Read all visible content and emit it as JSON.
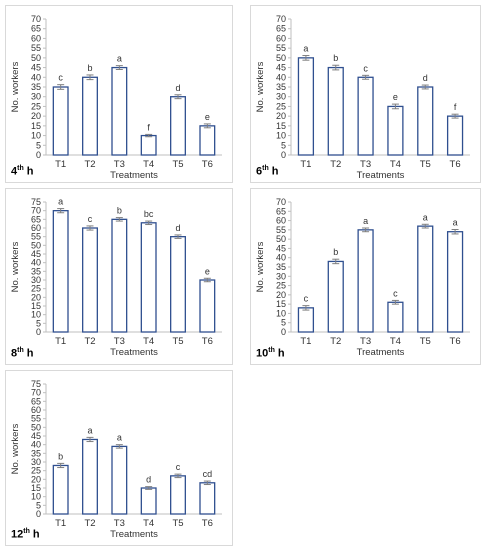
{
  "chart_data": [
    {
      "type": "bar",
      "panel_label": {
        "pre": "4",
        "sup": "th",
        "post": " h"
      },
      "xlabel": "Treatments",
      "ylabel": "No. workers",
      "ylim": [
        0,
        70
      ],
      "yticks": [
        0,
        5,
        10,
        15,
        20,
        25,
        30,
        35,
        40,
        45,
        50,
        55,
        60,
        65,
        70
      ],
      "categories": [
        "T1",
        "T2",
        "T3",
        "T4",
        "T5",
        "T6"
      ],
      "values": [
        35,
        40,
        45,
        10,
        30,
        15
      ],
      "errors": [
        1.2,
        1.2,
        1.0,
        0.6,
        1.0,
        1.0
      ],
      "letters": [
        "c",
        "b",
        "a",
        "f",
        "d",
        "e"
      ]
    },
    {
      "type": "bar",
      "panel_label": {
        "pre": "6",
        "sup": "th",
        "post": " h"
      },
      "xlabel": "Treatments",
      "ylabel": "No. workers",
      "ylim": [
        0,
        70
      ],
      "yticks": [
        0,
        5,
        10,
        15,
        20,
        25,
        30,
        35,
        40,
        45,
        50,
        55,
        60,
        65,
        70
      ],
      "categories": [
        "T1",
        "T2",
        "T3",
        "T4",
        "T5",
        "T6"
      ],
      "values": [
        50,
        45,
        40,
        25,
        35,
        20
      ],
      "errors": [
        1.2,
        1.2,
        1.0,
        1.2,
        1.0,
        1.0
      ],
      "letters": [
        "a",
        "b",
        "c",
        "e",
        "d",
        "f"
      ]
    },
    {
      "type": "bar",
      "panel_label": {
        "pre": "8",
        "sup": "th",
        "post": " h"
      },
      "xlabel": "Treatments",
      "ylabel": "No. workers",
      "ylim": [
        0,
        75
      ],
      "yticks": [
        0,
        5,
        10,
        15,
        20,
        25,
        30,
        35,
        40,
        45,
        50,
        55,
        60,
        65,
        70,
        75
      ],
      "categories": [
        "T1",
        "T2",
        "T3",
        "T4",
        "T5",
        "T6"
      ],
      "values": [
        70,
        60,
        65,
        63,
        55,
        30
      ],
      "errors": [
        1.2,
        1.2,
        1.0,
        1.0,
        1.0,
        1.0
      ],
      "letters": [
        "a",
        "c",
        "b",
        "bc",
        "d",
        "e"
      ]
    },
    {
      "type": "bar",
      "panel_label": {
        "pre": "10",
        "sup": "th",
        "post": " h"
      },
      "xlabel": "Treatments",
      "ylabel": "No. workers",
      "ylim": [
        0,
        70
      ],
      "yticks": [
        0,
        5,
        10,
        15,
        20,
        25,
        30,
        35,
        40,
        45,
        50,
        55,
        60,
        65,
        70
      ],
      "categories": [
        "T1",
        "T2",
        "T3",
        "T4",
        "T5",
        "T6"
      ],
      "values": [
        13,
        38,
        55,
        16,
        57,
        54
      ],
      "errors": [
        1.2,
        1.2,
        1.0,
        1.0,
        1.0,
        1.2
      ],
      "letters": [
        "c",
        "b",
        "a",
        "c",
        "a",
        "a"
      ]
    },
    {
      "type": "bar",
      "panel_label": {
        "pre": "12",
        "sup": "th",
        "post": " h"
      },
      "xlabel": "Treatments",
      "ylabel": "No. workers",
      "ylim": [
        0,
        75
      ],
      "yticks": [
        0,
        5,
        10,
        15,
        20,
        25,
        30,
        35,
        40,
        45,
        50,
        55,
        60,
        65,
        70,
        75
      ],
      "categories": [
        "T1",
        "T2",
        "T3",
        "T4",
        "T5",
        "T6"
      ],
      "values": [
        28,
        43,
        39,
        15,
        22,
        18
      ],
      "errors": [
        1.2,
        1.2,
        1.0,
        0.8,
        1.0,
        1.0
      ],
      "letters": [
        "b",
        "a",
        "a",
        "d",
        "c",
        "cd"
      ]
    }
  ],
  "colors": {
    "bar_edge": "#2f4f8f",
    "bar_fill": "#ffffff",
    "axis": "#bfbfbf",
    "error": "#7f7f7f"
  }
}
